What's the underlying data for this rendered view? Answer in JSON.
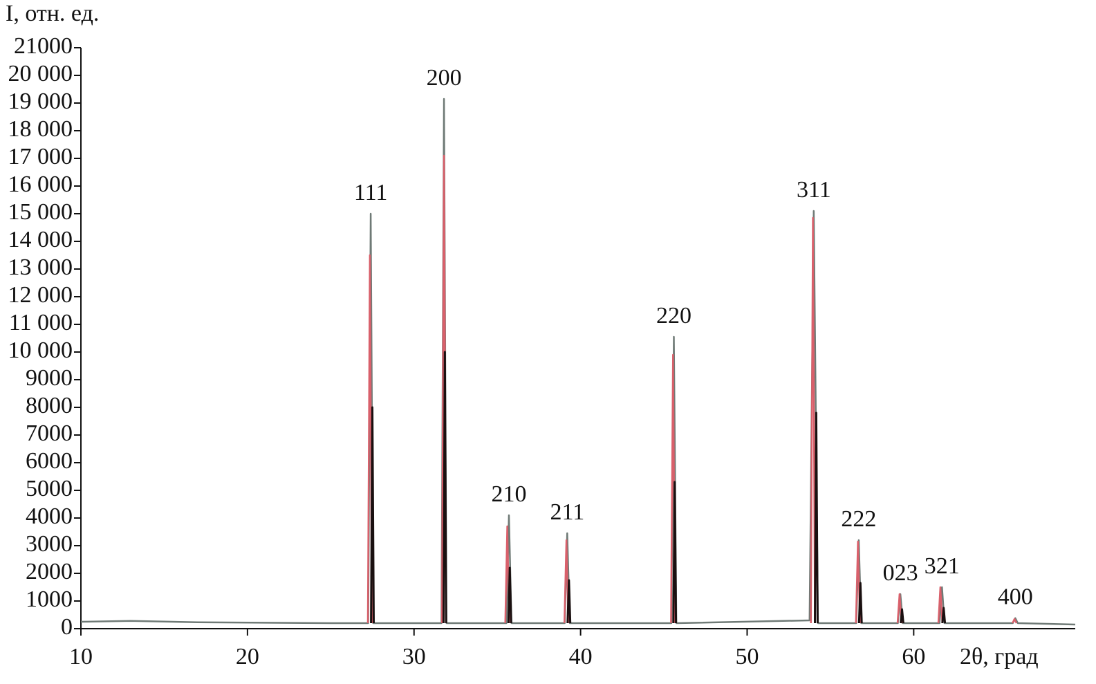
{
  "chart_data": {
    "type": "line",
    "y_label": "I, отн. ед.",
    "x_label": "2θ, град",
    "xlim": [
      10,
      69.7
    ],
    "xticks": [
      10,
      20,
      30,
      40,
      50,
      60
    ],
    "ylim": [
      0,
      21000
    ],
    "yticks": [
      0,
      1000,
      2000,
      3000,
      4000,
      5000,
      6000,
      7000,
      8000,
      9000,
      {
        "value": 10000,
        "label": "10 000"
      },
      {
        "value": 11000,
        "label": "11 000"
      },
      {
        "value": 12000,
        "label": "12 000"
      },
      {
        "value": 13000,
        "label": "13 000"
      },
      {
        "value": 14000,
        "label": "14 000"
      },
      {
        "value": 15000,
        "label": "15 000"
      },
      {
        "value": 16000,
        "label": "16 000"
      },
      {
        "value": 17000,
        "label": "17 000"
      },
      {
        "value": 18000,
        "label": "18 000"
      },
      {
        "value": 19000,
        "label": "19 000"
      },
      {
        "value": 20000,
        "label": "20 000"
      },
      21000
    ],
    "annotations": [
      "111",
      "200",
      "210",
      "211",
      "220",
      "311",
      "222",
      "023",
      "321",
      "400"
    ],
    "series": [
      {
        "color": "#6f7a76",
        "x": [
          10,
          13,
          17,
          25,
          27.25,
          27.4,
          27.55,
          31.65,
          31.8,
          31.95,
          35.55,
          35.7,
          35.85,
          39.05,
          39.2,
          39.35,
          45.45,
          45.6,
          45.75,
          53.75,
          54.0,
          54.25,
          56.55,
          56.7,
          56.85,
          59.05,
          59.2,
          59.35,
          61.55,
          61.7,
          61.85,
          65.95,
          66.1,
          66.25,
          69.7
        ],
        "values": [
          250,
          280,
          230,
          200,
          200,
          15000,
          200,
          200,
          19150,
          200,
          200,
          4100,
          200,
          200,
          3450,
          200,
          200,
          10550,
          200,
          300,
          15100,
          200,
          200,
          3200,
          200,
          200,
          1250,
          200,
          200,
          1500,
          200,
          200,
          380,
          200,
          150
        ]
      },
      {
        "color": "#d9606b",
        "x": [
          27.23,
          27.35,
          27.47,
          null,
          31.68,
          31.8,
          31.92,
          null,
          35.48,
          35.6,
          35.72,
          null,
          39.03,
          39.15,
          39.27,
          null,
          45.43,
          45.55,
          45.67,
          null,
          53.83,
          53.95,
          54.07,
          null,
          56.53,
          56.65,
          56.77,
          null,
          59.03,
          59.15,
          59.27,
          null,
          61.48,
          61.6,
          61.72,
          null,
          65.93,
          66.05,
          66.17
        ],
        "values": [
          200,
          13500,
          200,
          null,
          200,
          17100,
          200,
          null,
          200,
          3700,
          200,
          null,
          200,
          3200,
          200,
          null,
          200,
          9900,
          200,
          null,
          200,
          14850,
          200,
          null,
          200,
          3150,
          200,
          null,
          200,
          1250,
          200,
          null,
          200,
          1500,
          200,
          null,
          200,
          350,
          200
        ]
      },
      {
        "color": "#1a1010",
        "x": [
          27.42,
          27.5,
          27.58,
          null,
          31.77,
          31.85,
          31.93,
          null,
          35.67,
          35.75,
          35.83,
          null,
          39.22,
          39.3,
          39.38,
          null,
          45.57,
          45.65,
          45.73,
          null,
          54.07,
          54.15,
          54.23,
          null,
          56.72,
          56.8,
          56.88,
          null,
          59.22,
          59.3,
          59.38,
          null,
          61.72,
          61.8,
          61.88
        ],
        "values": [
          200,
          8000,
          200,
          null,
          200,
          10000,
          200,
          null,
          200,
          2200,
          200,
          null,
          200,
          1750,
          200,
          null,
          200,
          5300,
          200,
          null,
          200,
          7800,
          200,
          null,
          200,
          1650,
          200,
          null,
          200,
          700,
          200,
          null,
          200,
          750,
          200
        ]
      }
    ]
  }
}
